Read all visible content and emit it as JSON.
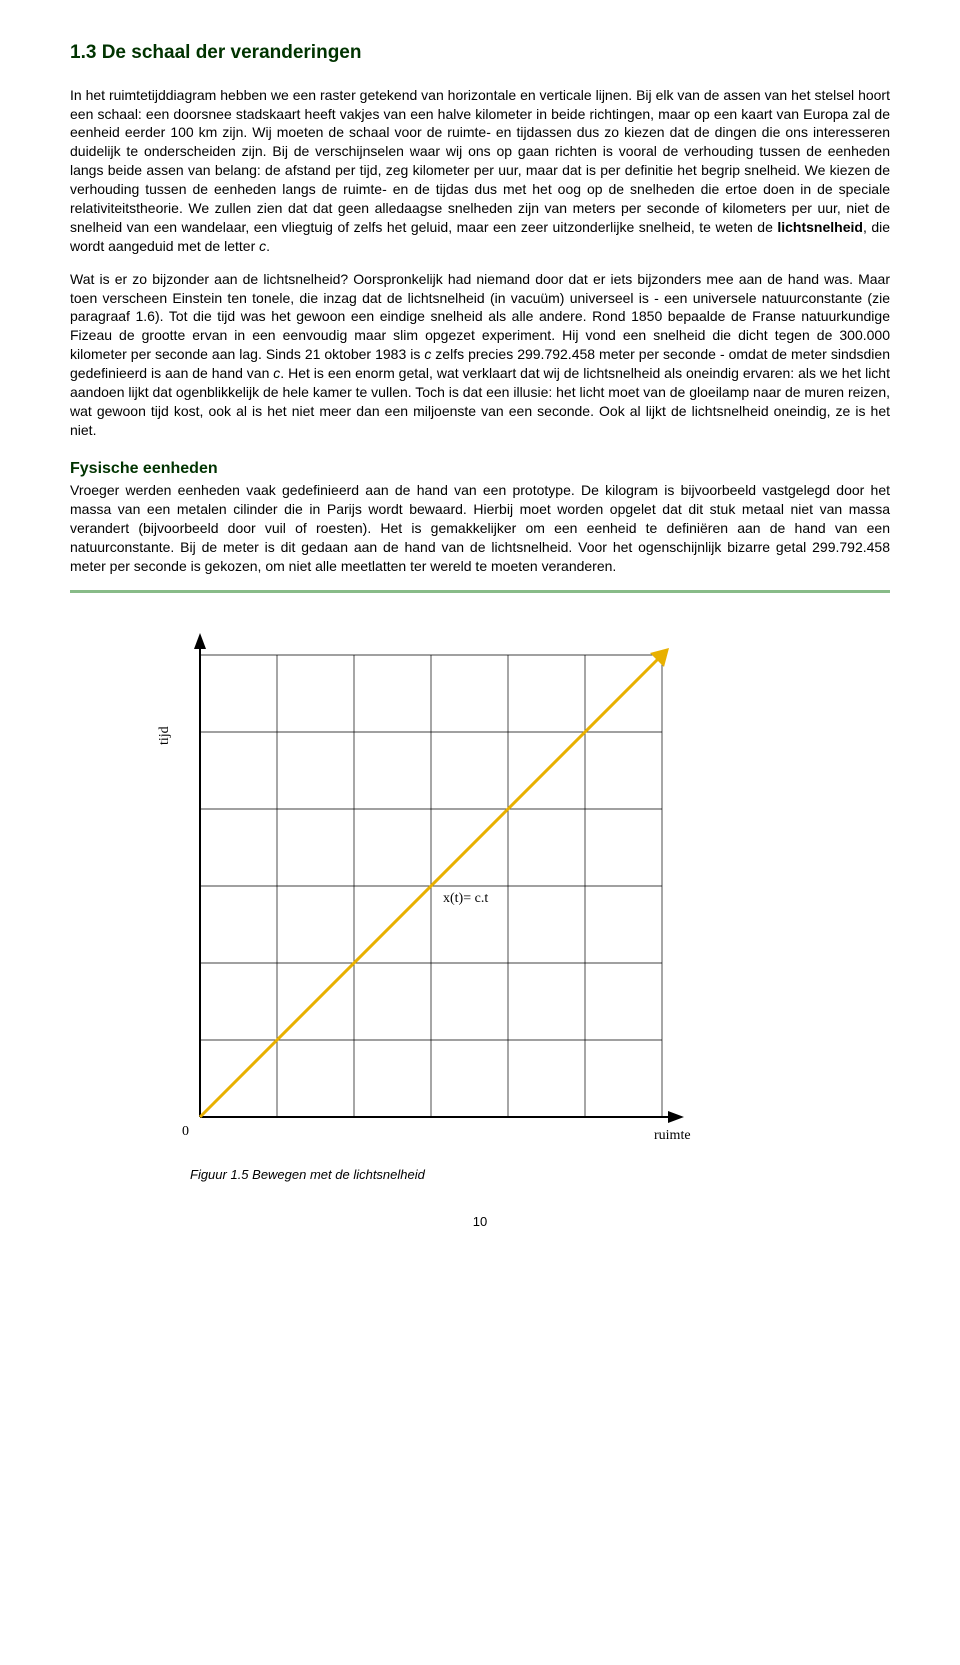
{
  "section": {
    "number": "1.3",
    "title": "De schaal der veranderingen",
    "full_heading": "1.3   De schaal der veranderingen"
  },
  "paragraphs": {
    "p1": "In het ruimtetijddiagram hebben we een raster getekend van horizontale en verticale lijnen. Bij elk van de assen van het stelsel hoort een schaal: een doorsnee stadskaart heeft vakjes van een halve kilometer in beide richtingen, maar op een kaart van Europa zal de eenheid eerder 100 km zijn. Wij moeten de schaal voor de ruimte- en tijdassen dus zo kiezen dat de dingen die ons interesseren duidelijk te onderscheiden zijn. Bij de verschijnselen waar wij ons op gaan richten is vooral de verhouding tussen de eenheden langs beide assen van belang: de afstand per tijd, zeg kilometer per uur, maar dat is per definitie het begrip snelheid. We kiezen de verhouding tussen de eenheden langs de ruimte- en de tijdas dus met het oog op de snelheden die ertoe doen in de speciale relativiteitstheorie. We zullen zien dat dat geen alledaagse snelheden zijn van meters per seconde of kilometers per uur, niet de snelheid van een wandelaar, een vliegtuig of zelfs het geluid, maar een zeer uitzonderlijke snelheid, te weten de ",
    "p1_bold": "lichtsnelheid",
    "p1_tail": ", die wordt aangeduid met de letter ",
    "p1_italic": "c",
    "p1_end": ".",
    "p2": "Wat is er zo bijzonder aan de lichtsnelheid? Oorspronkelijk had niemand door dat er iets bijzonders mee aan de hand was. Maar toen verscheen Einstein ten tonele, die inzag dat de lichtsnelheid (in vacuüm) universeel is - een universele natuurconstante (zie paragraaf 1.6). Tot die tijd was het gewoon een eindige snelheid als alle andere. Rond 1850 bepaalde de Franse natuurkundige Fizeau de grootte ervan in een eenvoudig maar slim opgezet experiment. Hij vond een snelheid die dicht tegen de 300.000 kilometer per seconde aan lag. Sinds 21 oktober 1983 is ",
    "p2_italic1": "c",
    "p2_mid": " zelfs precies 299.792.458 meter per seconde - omdat de meter sindsdien gedefinieerd is aan de hand van ",
    "p2_italic2": "c",
    "p2_tail": ". Het is een enorm getal, wat verklaart dat wij de lichtsnelheid als oneindig ervaren: als we het licht aandoen lijkt dat ogenblikkelijk de hele kamer te vullen. Toch is dat een illusie: het licht moet van de gloeilamp naar de muren reizen, wat gewoon tijd kost, ook al is het niet meer dan een miljoenste van een seconde. Ook al lijkt de lichtsnelheid oneindig, ze is het niet.",
    "sub_heading": "Fysische eenheden",
    "p3": "Vroeger werden eenheden vaak gedefinieerd aan de hand van een prototype. De kilogram is bijvoorbeeld vastgelegd door het massa van een metalen cilinder die in Parijs wordt bewaard. Hierbij moet worden opgelet dat dit stuk metaal niet van massa verandert (bijvoorbeeld door vuil of roesten). Het is gemakkelijker om een eenheid te definiëren aan de hand van een natuurconstante. Bij de meter is dit gedaan aan de hand van de lichtsnelheid. Voor het ogenschijnlijk bizarre getal 299.792.458 meter per seconde is gekozen, om niet alle meetlatten ter wereld te moeten veranderen."
  },
  "figure": {
    "caption": "Figuur 1.5 Bewegen met de lichtsnelheid",
    "y_axis_label": "tijd",
    "x_axis_label": "ruimte",
    "origin_label": "0",
    "line_label": "x(t)= c.t",
    "grid": {
      "cols": 6,
      "rows": 6,
      "cell": 77
    },
    "colors": {
      "grid_line": "#000000",
      "arrow_line": "#e8b000",
      "arrow_width": 3,
      "text": "#000000",
      "background": "#ffffff"
    }
  },
  "page_number": "10"
}
